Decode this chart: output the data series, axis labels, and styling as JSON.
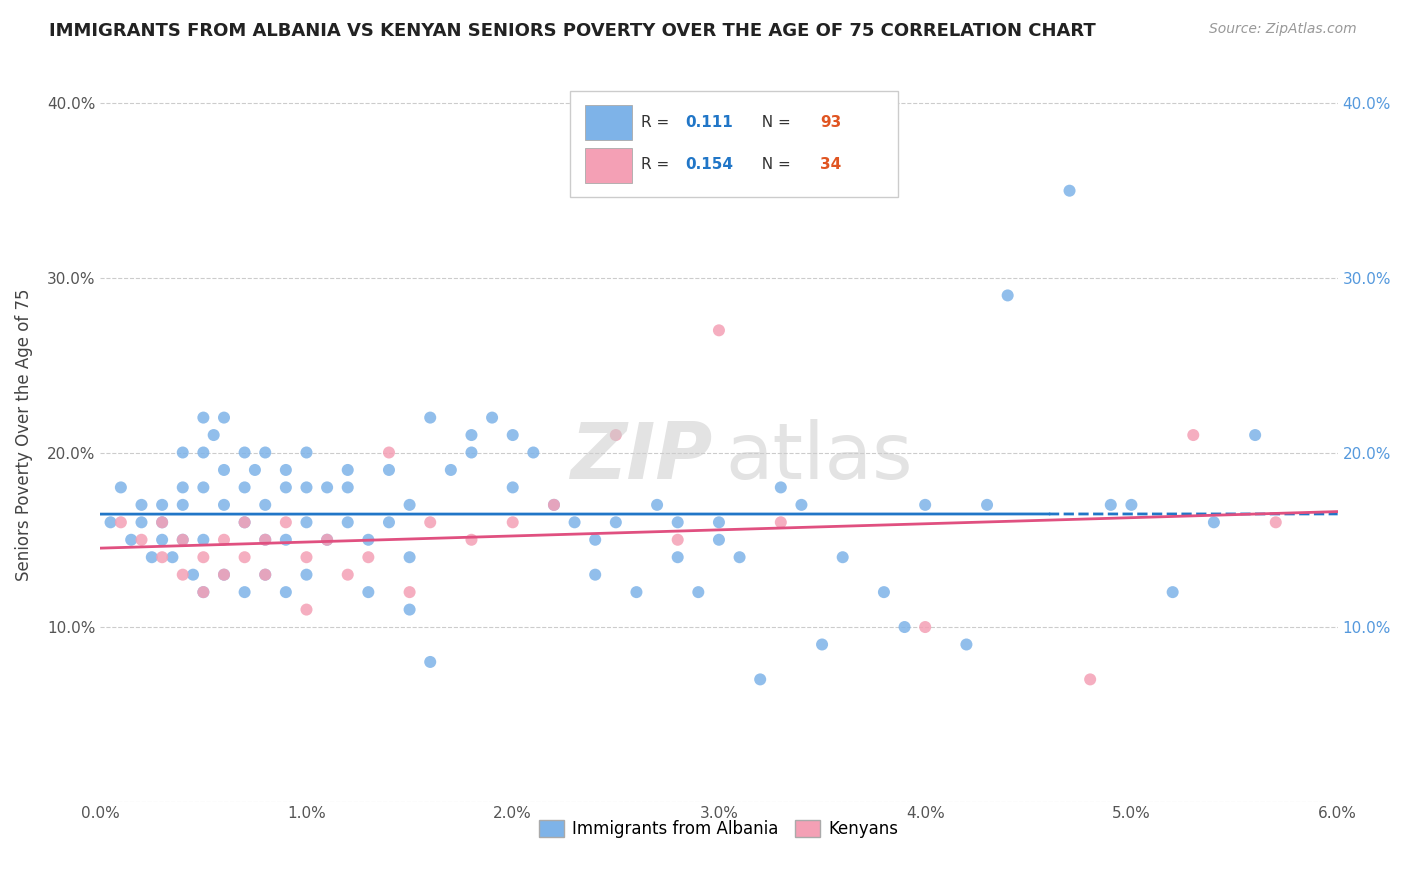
{
  "title": "IMMIGRANTS FROM ALBANIA VS KENYAN SENIORS POVERTY OVER THE AGE OF 75 CORRELATION CHART",
  "source": "Source: ZipAtlas.com",
  "ylabel": "Seniors Poverty Over the Age of 75",
  "xlim": [
    0.0,
    0.06
  ],
  "ylim": [
    0.0,
    0.42
  ],
  "albania_color": "#7eb3e8",
  "kenya_color": "#f4a0b5",
  "albania_trend_color": "#2176c7",
  "kenya_trend_color": "#e05080",
  "albania_R": "0.111",
  "albania_N": "93",
  "kenya_R": "0.154",
  "kenya_N": "34",
  "albania_scatter_x": [
    0.0005,
    0.001,
    0.0015,
    0.002,
    0.002,
    0.0025,
    0.003,
    0.003,
    0.003,
    0.0035,
    0.004,
    0.004,
    0.004,
    0.004,
    0.0045,
    0.005,
    0.005,
    0.005,
    0.005,
    0.005,
    0.0055,
    0.006,
    0.006,
    0.006,
    0.006,
    0.007,
    0.007,
    0.007,
    0.007,
    0.0075,
    0.008,
    0.008,
    0.008,
    0.008,
    0.009,
    0.009,
    0.009,
    0.009,
    0.01,
    0.01,
    0.01,
    0.01,
    0.011,
    0.011,
    0.012,
    0.012,
    0.012,
    0.013,
    0.013,
    0.014,
    0.014,
    0.015,
    0.015,
    0.015,
    0.016,
    0.016,
    0.017,
    0.018,
    0.018,
    0.019,
    0.02,
    0.02,
    0.021,
    0.022,
    0.023,
    0.024,
    0.024,
    0.025,
    0.026,
    0.027,
    0.028,
    0.028,
    0.029,
    0.03,
    0.03,
    0.031,
    0.032,
    0.033,
    0.034,
    0.035,
    0.036,
    0.038,
    0.039,
    0.04,
    0.042,
    0.043,
    0.044,
    0.047,
    0.049,
    0.05,
    0.052,
    0.054,
    0.056
  ],
  "albania_scatter_y": [
    0.16,
    0.18,
    0.15,
    0.16,
    0.17,
    0.14,
    0.15,
    0.16,
    0.17,
    0.14,
    0.2,
    0.18,
    0.17,
    0.15,
    0.13,
    0.12,
    0.22,
    0.2,
    0.18,
    0.15,
    0.21,
    0.19,
    0.17,
    0.13,
    0.22,
    0.2,
    0.18,
    0.16,
    0.12,
    0.19,
    0.17,
    0.15,
    0.13,
    0.2,
    0.18,
    0.15,
    0.12,
    0.19,
    0.16,
    0.2,
    0.18,
    0.13,
    0.18,
    0.15,
    0.19,
    0.16,
    0.18,
    0.15,
    0.12,
    0.19,
    0.16,
    0.17,
    0.14,
    0.11,
    0.08,
    0.22,
    0.19,
    0.21,
    0.2,
    0.22,
    0.21,
    0.18,
    0.2,
    0.17,
    0.16,
    0.15,
    0.13,
    0.16,
    0.12,
    0.17,
    0.16,
    0.14,
    0.12,
    0.16,
    0.15,
    0.14,
    0.07,
    0.18,
    0.17,
    0.09,
    0.14,
    0.12,
    0.1,
    0.17,
    0.09,
    0.17,
    0.29,
    0.35,
    0.17,
    0.17,
    0.12,
    0.16,
    0.21
  ],
  "kenya_scatter_x": [
    0.001,
    0.002,
    0.003,
    0.003,
    0.004,
    0.004,
    0.005,
    0.005,
    0.006,
    0.006,
    0.007,
    0.007,
    0.008,
    0.008,
    0.009,
    0.01,
    0.01,
    0.011,
    0.012,
    0.013,
    0.014,
    0.015,
    0.016,
    0.018,
    0.02,
    0.022,
    0.025,
    0.028,
    0.03,
    0.033,
    0.04,
    0.048,
    0.053,
    0.057
  ],
  "kenya_scatter_y": [
    0.16,
    0.15,
    0.14,
    0.16,
    0.15,
    0.13,
    0.14,
    0.12,
    0.15,
    0.13,
    0.16,
    0.14,
    0.13,
    0.15,
    0.16,
    0.14,
    0.11,
    0.15,
    0.13,
    0.14,
    0.2,
    0.12,
    0.16,
    0.15,
    0.16,
    0.17,
    0.21,
    0.15,
    0.27,
    0.16,
    0.1,
    0.07,
    0.21,
    0.16
  ]
}
